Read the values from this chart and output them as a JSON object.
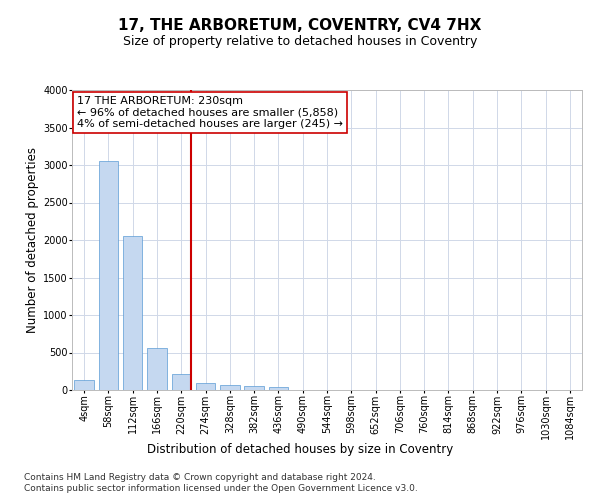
{
  "title": "17, THE ARBORETUM, COVENTRY, CV4 7HX",
  "subtitle": "Size of property relative to detached houses in Coventry",
  "xlabel": "Distribution of detached houses by size in Coventry",
  "ylabel": "Number of detached properties",
  "categories": [
    "4sqm",
    "58sqm",
    "112sqm",
    "166sqm",
    "220sqm",
    "274sqm",
    "328sqm",
    "382sqm",
    "436sqm",
    "490sqm",
    "544sqm",
    "598sqm",
    "652sqm",
    "706sqm",
    "760sqm",
    "814sqm",
    "868sqm",
    "922sqm",
    "976sqm",
    "1030sqm",
    "1084sqm"
  ],
  "values": [
    130,
    3060,
    2060,
    560,
    210,
    95,
    70,
    55,
    45,
    0,
    0,
    0,
    0,
    0,
    0,
    0,
    0,
    0,
    0,
    0,
    0
  ],
  "bar_color": "#c5d8f0",
  "bar_edge_color": "#5b9bd5",
  "vline_color": "#cc0000",
  "annotation_text": "17 THE ARBORETUM: 230sqm\n← 96% of detached houses are smaller (5,858)\n4% of semi-detached houses are larger (245) →",
  "annotation_box_color": "#ffffff",
  "annotation_box_edge": "#cc0000",
  "ylim": [
    0,
    4000
  ],
  "yticks": [
    0,
    500,
    1000,
    1500,
    2000,
    2500,
    3000,
    3500,
    4000
  ],
  "footnote1": "Contains HM Land Registry data © Crown copyright and database right 2024.",
  "footnote2": "Contains public sector information licensed under the Open Government Licence v3.0.",
  "background_color": "#ffffff",
  "grid_color": "#d0d8e8",
  "title_fontsize": 11,
  "subtitle_fontsize": 9,
  "axis_label_fontsize": 8.5,
  "tick_fontsize": 7,
  "annotation_fontsize": 8,
  "footnote_fontsize": 6.5
}
